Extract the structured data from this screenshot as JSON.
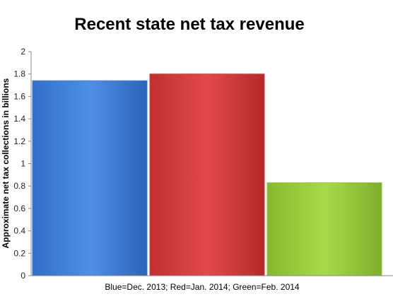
{
  "chart_data": {
    "type": "bar",
    "title": "Recent state net tax revenue",
    "xlabel": "Blue=Dec. 2013; Red=Jan. 2014; Green=Feb. 2014",
    "ylabel": "Approximate net tax collections in billions",
    "ylim": [
      0,
      2
    ],
    "yticks": [
      "0",
      "0.2",
      "0.4",
      "0.6",
      "0.8",
      "1",
      "1.2",
      "1.4",
      "1.6",
      "1.8",
      "2"
    ],
    "grid": false,
    "legend": "none",
    "values": [
      1.74,
      1.8,
      0.83
    ],
    "colors": [
      "#3b7dd8",
      "#d63b3b",
      "#9acb3c"
    ]
  }
}
